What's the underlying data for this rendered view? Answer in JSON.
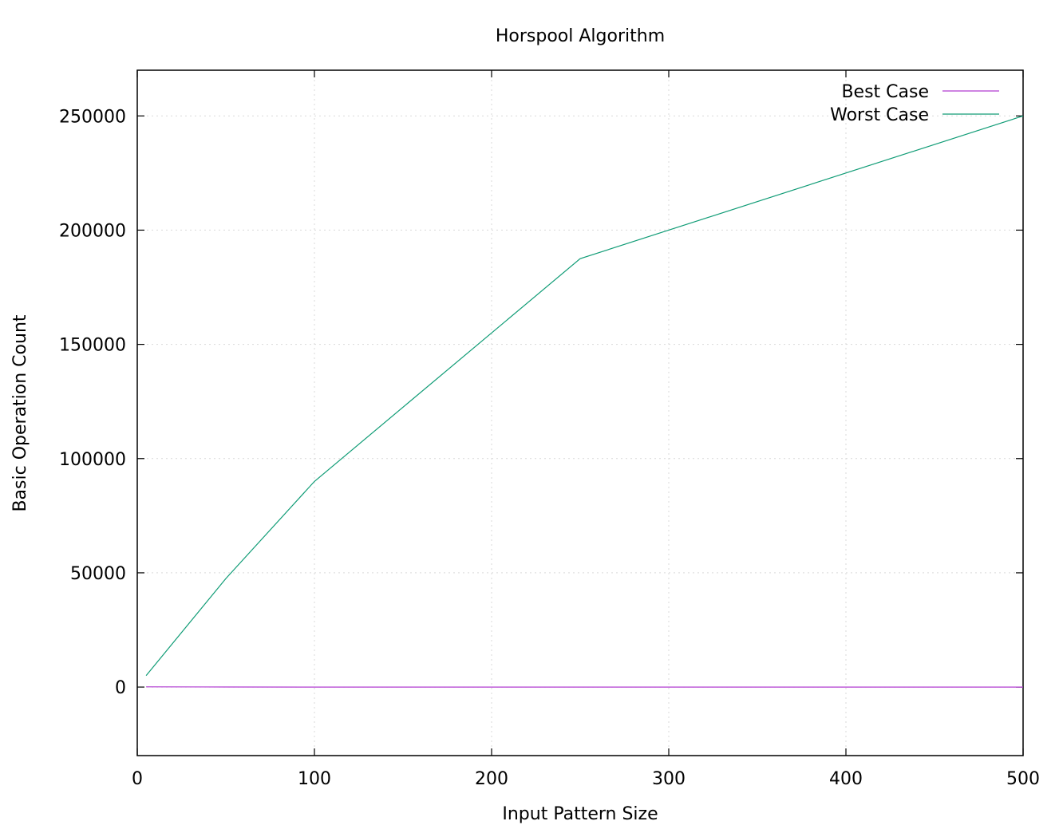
{
  "chart_data": {
    "type": "line",
    "title": "Horspool Algorithm",
    "xlabel": "Input Pattern Size",
    "ylabel": "Basic Operation Count",
    "xlim": [
      0,
      500
    ],
    "ylim": [
      -30000,
      270000
    ],
    "xticks": [
      0,
      100,
      200,
      300,
      400,
      500
    ],
    "yticks": [
      0,
      50000,
      100000,
      150000,
      200000,
      250000
    ],
    "xtick_labels": [
      "0",
      "100",
      "200",
      "300",
      "400",
      "500"
    ],
    "ytick_labels": [
      "0",
      "50000",
      "100000",
      "150000",
      "200000",
      "250000"
    ],
    "grid": true,
    "legend_position": "top-right",
    "series": [
      {
        "name": "Best Case",
        "color": "#b03ad1",
        "x": [
          5,
          50,
          100,
          250,
          500
        ],
        "y": [
          100,
          50,
          10,
          5,
          1
        ]
      },
      {
        "name": "Worst Case",
        "color": "#109c76",
        "x": [
          5,
          50,
          100,
          250,
          500
        ],
        "y": [
          5000,
          47500,
          90000,
          187500,
          250000
        ]
      }
    ]
  }
}
